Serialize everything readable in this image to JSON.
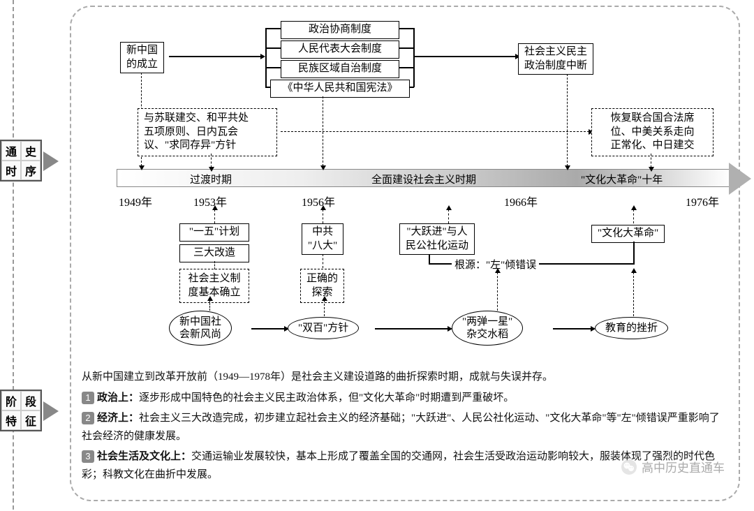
{
  "badges": {
    "b1": [
      "通",
      "史",
      "时",
      "序"
    ],
    "b2": [
      "阶",
      "段",
      "特",
      "征"
    ]
  },
  "timeline": {
    "years": [
      "1949年",
      "1953年",
      "1956年",
      "1966年",
      "1976年"
    ],
    "year_x": [
      58,
      165,
      320,
      610,
      870
    ],
    "periods": {
      "p1": "过渡时期",
      "p2": "全面建设社会主义时期",
      "p3": "\"文化大革命\"十年"
    },
    "period_x": [
      160,
      420,
      720
    ]
  },
  "top": {
    "founding": "新中国\n的成立",
    "pol1": "政治协商制度",
    "pol2": "人民代表大会制度",
    "pol3": "民族区域自治制度",
    "pol4": "《中华人民共和国宪法》",
    "interrupt": "社会主义民主\n政治制度中断",
    "diplo1": "与苏联建交、和平共处\n五项原则、日内瓦会\n议、\"求同存异\"方针",
    "diplo2": "恢复联合国合法席\n位、中美关系走向\n正常化、中日建交"
  },
  "bottom": {
    "yiwu": "\"一五\"计划",
    "sanda": "三大改造",
    "shehui": "社会主义制\n度基本确立",
    "bada": "中共\n\"八大\"",
    "tansuo": "正确的\n探索",
    "dayue": "\"大跃进\"与人\n民公社化运动",
    "root": "根源：\"左\"倾错误",
    "wenge": "\"文化大革命\"",
    "o1": "新中国社\n会新风尚",
    "o2": "\"双百\"方针",
    "o3": "\"两弹一星\"\n杂交水稻",
    "o4": "教育的挫折"
  },
  "features": {
    "intro": "从新中国建立到改革开放前（1949—1978年）是社会主义建设道路的曲折探索时期，成就与失误并存。",
    "f1_label": "政治上：",
    "f1": "逐步形成中国特色的社会主义民主政治体系，但\"文化大革命\"时期遭到严重破坏。",
    "f2_label": "经济上：",
    "f2": "社会主义三大改造完成，初步建立起社会主义的经济基础；\"大跃进\"、人民公社化运动、\"文化大革命\"等\"左\"倾错误严重影响了社会经济的健康发展。",
    "f3_label": "社会生活及文化上：",
    "f3": "交通运输业发展较快，基本上形成了覆盖全国的交通网，社会生活受政治运动影响较大，服装体现了强烈的时代色彩；科教文化在曲折中发展。"
  },
  "watermark": "高中历史直通车"
}
